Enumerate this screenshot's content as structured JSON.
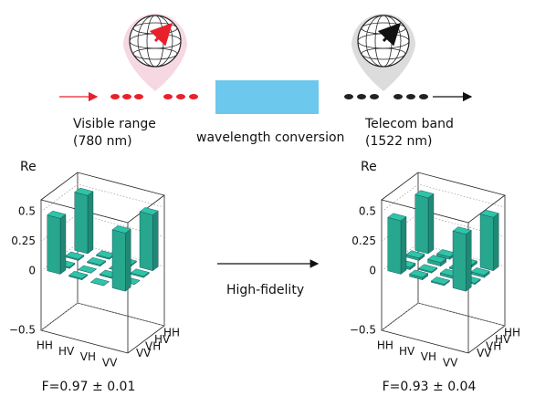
{
  "header": {
    "source": {
      "label": "Visible range",
      "wavelength": "(780 nm)"
    },
    "process": "wavelength conversion",
    "target": {
      "label": "Telecom band",
      "wavelength": "(1522 nm)"
    }
  },
  "transfer_label": "High-fidelity",
  "charts": [
    {
      "type": "bar3d",
      "zlabel": "Re",
      "zlim": [
        -0.5,
        0.6
      ],
      "zticks": [
        0.5,
        0.25,
        0,
        {
          "value": -0.5,
          "label": "−0.5"
        }
      ],
      "rows": [
        "HH",
        "HV",
        "VH",
        "VV"
      ],
      "cols": [
        "HH",
        "HV",
        "VH",
        "VV"
      ],
      "values": [
        [
          0.49,
          0.01,
          -0.01,
          0.47
        ],
        [
          0.01,
          0.01,
          0.0,
          0.01
        ],
        [
          -0.01,
          0.0,
          0.01,
          0.0
        ],
        [
          0.47,
          0.01,
          0.0,
          0.49
        ]
      ],
      "color": "#2ec4a6",
      "fidelity": "F=0.97 ± 0.01"
    },
    {
      "type": "bar3d",
      "zlabel": "Re",
      "zlim": [
        -0.5,
        0.6
      ],
      "zticks": [
        0.5,
        0.25,
        0,
        {
          "value": -0.5,
          "label": "−0.5"
        }
      ],
      "rows": [
        "HH",
        "HV",
        "VH",
        "VV"
      ],
      "cols": [
        "HH",
        "HV",
        "VH",
        "VV"
      ],
      "values": [
        [
          0.47,
          0.02,
          -0.02,
          0.45
        ],
        [
          0.02,
          0.03,
          0.01,
          0.02
        ],
        [
          -0.02,
          0.01,
          0.02,
          0.01
        ],
        [
          0.45,
          0.02,
          0.01,
          0.48
        ]
      ],
      "color": "#2ec4a6",
      "fidelity": "F=0.93 ± 0.04"
    }
  ]
}
